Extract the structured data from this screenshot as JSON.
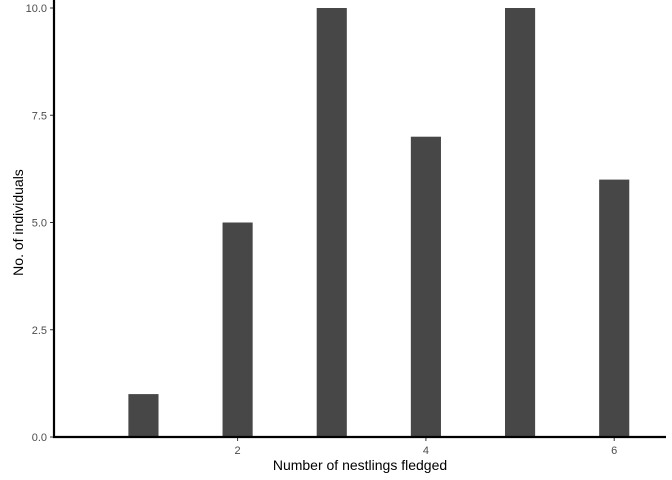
{
  "chart_data": {
    "type": "bar",
    "title": "",
    "xlabel": "Number of nestlings fledged",
    "ylabel": "No. of individuals",
    "x": [
      1,
      2,
      3,
      4,
      5,
      6
    ],
    "values": [
      1,
      5,
      10,
      7,
      10,
      6
    ],
    "xlim": [
      0.05,
      6.55
    ],
    "ylim": [
      0,
      10
    ],
    "x_ticks": [
      2,
      4,
      6
    ],
    "y_ticks": [
      0,
      2.5,
      5,
      7.5,
      10
    ],
    "y_tick_labels": [
      "0.0",
      "2.5",
      "5.0",
      "7.5",
      "10.0"
    ],
    "bar_width": 0.32,
    "grid": false,
    "bar_color": "#474747",
    "axis_color": "#000000"
  }
}
